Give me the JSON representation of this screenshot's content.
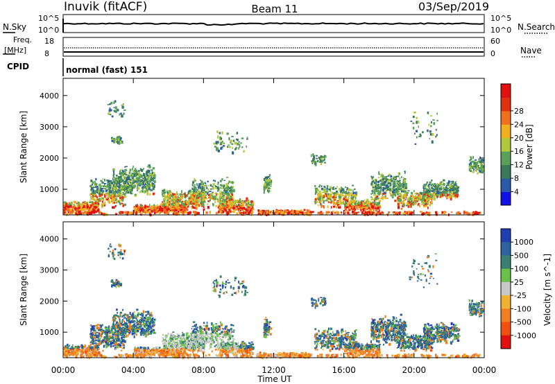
{
  "header": {
    "station": "Inuvik (fitACF)",
    "beam": "Beam 11",
    "date": "03/Sep/2019"
  },
  "panel_noise": {
    "left_label": "N.Sky",
    "right_label": "N.Search",
    "ticks": [
      "10^5",
      "10^0"
    ]
  },
  "panel_freq": {
    "left_label_1": "Freq.",
    "left_label_2": "[MHz]",
    "right_label": "Nave",
    "left_ticks": [
      "18",
      "8"
    ],
    "right_ticks": [
      "60",
      "0"
    ]
  },
  "cpid": {
    "label": "CPID",
    "value": "normal (fast) 151"
  },
  "time_axis": {
    "label": "Time UT",
    "ticks": [
      "00:00",
      "04:00",
      "08:00",
      "12:00",
      "16:00",
      "20:00",
      "00:00"
    ]
  },
  "chart_data": [
    {
      "type": "heatmap",
      "title": "Power",
      "ylabel": "Slant Range [km]",
      "xlabel": "Time UT",
      "y_ticks": [
        "1000",
        "2000",
        "3000",
        "4000"
      ],
      "ylim": [
        180,
        4550
      ],
      "xlim_hours": [
        0,
        24
      ],
      "colorbar": {
        "label": "Power [dB]",
        "ticks": [
          "4",
          "8",
          "12",
          "16",
          "20",
          "24",
          "28"
        ],
        "colors": [
          "#1010e8",
          "#2a5aa8",
          "#3a7a5a",
          "#5aa05a",
          "#b0c83a",
          "#f0b020",
          "#f07020",
          "#e03010",
          "#e01010"
        ]
      }
    },
    {
      "type": "heatmap",
      "title": "Velocity",
      "ylabel": "Slant Range [km]",
      "xlabel": "Time UT",
      "y_ticks": [
        "1000",
        "2000",
        "3000",
        "4000"
      ],
      "ylim": [
        180,
        4550
      ],
      "xlim_hours": [
        0,
        24
      ],
      "colorbar": {
        "label": "Velocity [m s^-1]",
        "ticks": [
          "1000",
          "500",
          "100",
          "25",
          "-25",
          "-100",
          "-500",
          "-1000"
        ],
        "colors": [
          "#2040b0",
          "#2f62a0",
          "#3a8070",
          "#6ac04a",
          "#c8c8c8",
          "#f0b030",
          "#f08020",
          "#f05010",
          "#e01010"
        ]
      }
    }
  ]
}
